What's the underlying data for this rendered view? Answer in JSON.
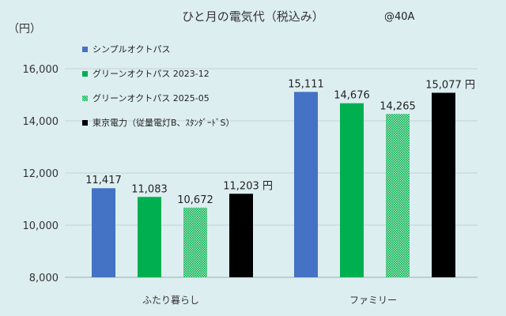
{
  "title": "ひと月の電気代（税込み）",
  "note": "@40A",
  "unit_label": "（円）",
  "colors": {
    "background": "#ddeef0",
    "gridline": "#c5d3d5",
    "text": "#222222"
  },
  "chart_data": {
    "type": "bar",
    "categories": [
      "ふたり暮らし",
      "ファミリー"
    ],
    "ylim": [
      8000,
      16000
    ],
    "yticks": [
      8000,
      10000,
      12000,
      14000,
      16000
    ],
    "ytick_labels": [
      "8,000",
      "10,000",
      "12,000",
      "14,000",
      "16,000"
    ],
    "grid": true,
    "legend": "top-left",
    "value_suffix": "円",
    "series": [
      {
        "name": "シンプルオクトパス",
        "color": "#4472c4",
        "pattern": "solid",
        "values": [
          11417,
          15111
        ],
        "labels": [
          "11,417",
          "15,111"
        ]
      },
      {
        "name": "グリーンオクトパス 2023-12",
        "color": "#00b050",
        "pattern": "solid",
        "values": [
          11083,
          14676
        ],
        "labels": [
          "11,083",
          "14,676"
        ]
      },
      {
        "name": "グリーンオクトパス 2025-05",
        "color": "#00b050",
        "pattern": "dots",
        "values": [
          10672,
          14265
        ],
        "labels": [
          "10,672",
          "14,265"
        ]
      },
      {
        "name": "東京電力（従量電灯B、ｽﾀﾝﾀﾞｰﾄﾞS）",
        "color": "#000000",
        "pattern": "solid",
        "values": [
          11203,
          15077
        ],
        "labels": [
          "11,203",
          "15,077"
        ]
      }
    ]
  }
}
